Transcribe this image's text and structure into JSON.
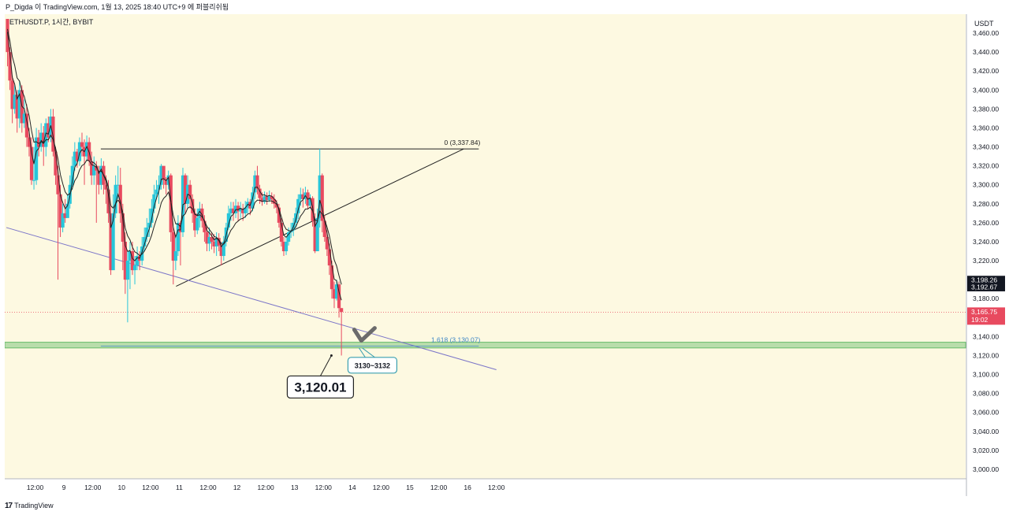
{
  "header": {
    "publish_line": "P_Digda 이 TradingView.com, 1월 13, 2025 18:40 UTC+9 에 퍼블리쉬됨"
  },
  "footer": {
    "brand": "TradingView",
    "logo_text": "17"
  },
  "colors": {
    "background": "#fdf9e1",
    "up": "#26c6da",
    "down": "#e84a5f",
    "ma": "#222222",
    "trend_blue": "#7b75c8",
    "zone_green": "#66bb6a",
    "fib_label": "#3d86c6",
    "annotation_border": "#3a9fb0"
  },
  "chart_data": {
    "type": "candlestick",
    "symbol_label": "ETHUSDT.P, 1시간, BYBIT",
    "currency": "USDT",
    "ylim": [
      2990,
      3480
    ],
    "y_ticks": [
      3000,
      3020,
      3040,
      3060,
      3080,
      3100,
      3120,
      3140,
      3160,
      3180,
      3200,
      3220,
      3240,
      3260,
      3280,
      3300,
      3320,
      3340,
      3360,
      3380,
      3400,
      3420,
      3440,
      3460
    ],
    "x_range": [
      0,
      1200
    ],
    "x_ticks": [
      {
        "t": 36,
        "label": "12:00"
      },
      {
        "t": 72,
        "label": "9"
      },
      {
        "t": 108,
        "label": "12:00"
      },
      {
        "t": 144,
        "label": "10"
      },
      {
        "t": 180,
        "label": "12:00"
      },
      {
        "t": 216,
        "label": "11"
      },
      {
        "t": 252,
        "label": "12:00"
      },
      {
        "t": 288,
        "label": "12"
      },
      {
        "t": 324,
        "label": "12:00"
      },
      {
        "t": 360,
        "label": "13"
      },
      {
        "t": 396,
        "label": "12:00"
      },
      {
        "t": 432,
        "label": "14"
      },
      {
        "t": 468,
        "label": "12:00"
      },
      {
        "t": 504,
        "label": "15"
      },
      {
        "t": 540,
        "label": "12:00"
      },
      {
        "t": 576,
        "label": "16"
      },
      {
        "t": 612,
        "label": "12:00"
      }
    ],
    "start_close": 3475,
    "candles": [
      {
        "c": 3440,
        "h": 3470,
        "l": 3425
      },
      {
        "c": 3410,
        "h": 3445,
        "l": 3400
      },
      {
        "c": 3380,
        "h": 3415,
        "l": 3365
      },
      {
        "c": 3395,
        "h": 3405,
        "l": 3375
      },
      {
        "c": 3370,
        "h": 3400,
        "l": 3355
      },
      {
        "c": 3400,
        "h": 3410,
        "l": 3360
      },
      {
        "c": 3365,
        "h": 3405,
        "l": 3355
      },
      {
        "c": 3375,
        "h": 3390,
        "l": 3360
      },
      {
        "c": 3350,
        "h": 3385,
        "l": 3340
      },
      {
        "c": 3340,
        "h": 3360,
        "l": 3330
      },
      {
        "c": 3305,
        "h": 3350,
        "l": 3300
      },
      {
        "c": 3305,
        "h": 3340,
        "l": 3295
      },
      {
        "c": 3350,
        "h": 3360,
        "l": 3300
      },
      {
        "c": 3340,
        "h": 3358,
        "l": 3330
      },
      {
        "c": 3355,
        "h": 3365,
        "l": 3335
      },
      {
        "c": 3340,
        "h": 3362,
        "l": 3320
      },
      {
        "c": 3365,
        "h": 3370,
        "l": 3330
      },
      {
        "c": 3350,
        "h": 3372,
        "l": 3345
      },
      {
        "c": 3372,
        "h": 3380,
        "l": 3345
      },
      {
        "c": 3335,
        "h": 3380,
        "l": 3330
      },
      {
        "c": 3310,
        "h": 3340,
        "l": 3300
      },
      {
        "c": 3290,
        "h": 3320,
        "l": 3200
      },
      {
        "c": 3255,
        "h": 3300,
        "l": 3245
      },
      {
        "c": 3270,
        "h": 3280,
        "l": 3250
      },
      {
        "c": 3265,
        "h": 3285,
        "l": 3260
      },
      {
        "c": 3280,
        "h": 3290,
        "l": 3270
      },
      {
        "c": 3300,
        "h": 3310,
        "l": 3275
      },
      {
        "c": 3320,
        "h": 3330,
        "l": 3295
      },
      {
        "c": 3335,
        "h": 3345,
        "l": 3315
      },
      {
        "c": 3325,
        "h": 3338,
        "l": 3318
      },
      {
        "c": 3345,
        "h": 3350,
        "l": 3320
      },
      {
        "c": 3340,
        "h": 3355,
        "l": 3330
      },
      {
        "c": 3330,
        "h": 3348,
        "l": 3300
      },
      {
        "c": 3345,
        "h": 3352,
        "l": 3325
      },
      {
        "c": 3325,
        "h": 3350,
        "l": 3320
      },
      {
        "c": 3310,
        "h": 3335,
        "l": 3300
      },
      {
        "c": 3320,
        "h": 3330,
        "l": 3300
      },
      {
        "c": 3315,
        "h": 3325,
        "l": 3260
      },
      {
        "c": 3300,
        "h": 3320,
        "l": 3290
      },
      {
        "c": 3320,
        "h": 3328,
        "l": 3295
      },
      {
        "c": 3300,
        "h": 3325,
        "l": 3290
      },
      {
        "c": 3295,
        "h": 3310,
        "l": 3280
      },
      {
        "c": 3270,
        "h": 3305,
        "l": 3260
      },
      {
        "c": 3210,
        "h": 3280,
        "l": 3205
      },
      {
        "c": 3270,
        "h": 3290,
        "l": 3260
      },
      {
        "c": 3300,
        "h": 3310,
        "l": 3265
      },
      {
        "c": 3300,
        "h": 3320,
        "l": 3285
      },
      {
        "c": 3270,
        "h": 3318,
        "l": 3260
      },
      {
        "c": 3240,
        "h": 3280,
        "l": 3210
      },
      {
        "c": 3200,
        "h": 3250,
        "l": 3185
      },
      {
        "c": 3220,
        "h": 3230,
        "l": 3155
      },
      {
        "c": 3230,
        "h": 3240,
        "l": 3190
      },
      {
        "c": 3210,
        "h": 3240,
        "l": 3205
      },
      {
        "c": 3215,
        "h": 3225,
        "l": 3195
      },
      {
        "c": 3225,
        "h": 3235,
        "l": 3210
      },
      {
        "c": 3220,
        "h": 3230,
        "l": 3210
      },
      {
        "c": 3235,
        "h": 3245,
        "l": 3215
      },
      {
        "c": 3245,
        "h": 3255,
        "l": 3230
      },
      {
        "c": 3255,
        "h": 3265,
        "l": 3240
      },
      {
        "c": 3260,
        "h": 3275,
        "l": 3245
      },
      {
        "c": 3275,
        "h": 3285,
        "l": 3255
      },
      {
        "c": 3290,
        "h": 3300,
        "l": 3270
      },
      {
        "c": 3295,
        "h": 3305,
        "l": 3285
      },
      {
        "c": 3300,
        "h": 3310,
        "l": 3280
      },
      {
        "c": 3320,
        "h": 3322,
        "l": 3295
      },
      {
        "c": 3305,
        "h": 3318,
        "l": 3296
      },
      {
        "c": 3300,
        "h": 3308,
        "l": 3290
      },
      {
        "c": 3310,
        "h": 3315,
        "l": 3295
      },
      {
        "c": 3250,
        "h": 3312,
        "l": 3240
      },
      {
        "c": 3220,
        "h": 3255,
        "l": 3195
      },
      {
        "c": 3230,
        "h": 3245,
        "l": 3210
      },
      {
        "c": 3260,
        "h": 3268,
        "l": 3225
      },
      {
        "c": 3250,
        "h": 3262,
        "l": 3215
      },
      {
        "c": 3310,
        "h": 3318,
        "l": 3245
      },
      {
        "c": 3280,
        "h": 3312,
        "l": 3270
      },
      {
        "c": 3300,
        "h": 3310,
        "l": 3275
      },
      {
        "c": 3285,
        "h": 3305,
        "l": 3275
      },
      {
        "c": 3270,
        "h": 3290,
        "l": 3260
      },
      {
        "c": 3252,
        "h": 3275,
        "l": 3245
      },
      {
        "c": 3265,
        "h": 3275,
        "l": 3248
      },
      {
        "c": 3275,
        "h": 3282,
        "l": 3255
      },
      {
        "c": 3262,
        "h": 3280,
        "l": 3255
      },
      {
        "c": 3250,
        "h": 3268,
        "l": 3240
      },
      {
        "c": 3238,
        "h": 3256,
        "l": 3230
      },
      {
        "c": 3245,
        "h": 3255,
        "l": 3230
      },
      {
        "c": 3240,
        "h": 3250,
        "l": 3232
      },
      {
        "c": 3235,
        "h": 3248,
        "l": 3228
      },
      {
        "c": 3244,
        "h": 3250,
        "l": 3225
      },
      {
        "c": 3236,
        "h": 3249,
        "l": 3230
      },
      {
        "c": 3225,
        "h": 3240,
        "l": 3215
      },
      {
        "c": 3240,
        "h": 3246,
        "l": 3220
      },
      {
        "c": 3255,
        "h": 3260,
        "l": 3235
      },
      {
        "c": 3270,
        "h": 3278,
        "l": 3252
      },
      {
        "c": 3275,
        "h": 3282,
        "l": 3262
      },
      {
        "c": 3270,
        "h": 3282,
        "l": 3262
      },
      {
        "c": 3278,
        "h": 3285,
        "l": 3265
      },
      {
        "c": 3272,
        "h": 3282,
        "l": 3262
      },
      {
        "c": 3275,
        "h": 3282,
        "l": 3265
      },
      {
        "c": 3270,
        "h": 3280,
        "l": 3262
      },
      {
        "c": 3276,
        "h": 3283,
        "l": 3265
      },
      {
        "c": 3282,
        "h": 3286,
        "l": 3270
      },
      {
        "c": 3275,
        "h": 3285,
        "l": 3268
      },
      {
        "c": 3292,
        "h": 3298,
        "l": 3272
      },
      {
        "c": 3310,
        "h": 3315,
        "l": 3285
      },
      {
        "c": 3296,
        "h": 3320,
        "l": 3290
      },
      {
        "c": 3286,
        "h": 3300,
        "l": 3280
      },
      {
        "c": 3282,
        "h": 3292,
        "l": 3278
      },
      {
        "c": 3288,
        "h": 3293,
        "l": 3280
      },
      {
        "c": 3284,
        "h": 3292,
        "l": 3279
      },
      {
        "c": 3288,
        "h": 3294,
        "l": 3282
      },
      {
        "c": 3285,
        "h": 3292,
        "l": 3280
      },
      {
        "c": 3280,
        "h": 3290,
        "l": 3275
      },
      {
        "c": 3276,
        "h": 3284,
        "l": 3270
      },
      {
        "c": 3260,
        "h": 3280,
        "l": 3255
      },
      {
        "c": 3240,
        "h": 3265,
        "l": 3235
      },
      {
        "c": 3230,
        "h": 3245,
        "l": 3225
      },
      {
        "c": 3240,
        "h": 3245,
        "l": 3226
      },
      {
        "c": 3250,
        "h": 3255,
        "l": 3236
      },
      {
        "c": 3252,
        "h": 3260,
        "l": 3244
      },
      {
        "c": 3260,
        "h": 3265,
        "l": 3246
      },
      {
        "c": 3270,
        "h": 3276,
        "l": 3255
      },
      {
        "c": 3285,
        "h": 3290,
        "l": 3264
      },
      {
        "c": 3290,
        "h": 3297,
        "l": 3278
      },
      {
        "c": 3285,
        "h": 3296,
        "l": 3276
      },
      {
        "c": 3292,
        "h": 3298,
        "l": 3280
      },
      {
        "c": 3278,
        "h": 3295,
        "l": 3274
      },
      {
        "c": 3286,
        "h": 3290,
        "l": 3275
      },
      {
        "c": 3262,
        "h": 3288,
        "l": 3256
      },
      {
        "c": 3230,
        "h": 3270,
        "l": 3228
      },
      {
        "c": 3265,
        "h": 3275,
        "l": 3240
      },
      {
        "c": 3310,
        "h": 3338,
        "l": 3255
      },
      {
        "c": 3262,
        "h": 3312,
        "l": 3250
      },
      {
        "c": 3245,
        "h": 3268,
        "l": 3240
      },
      {
        "c": 3232,
        "h": 3252,
        "l": 3225
      },
      {
        "c": 3215,
        "h": 3238,
        "l": 3205
      },
      {
        "c": 3190,
        "h": 3220,
        "l": 3180
      },
      {
        "c": 3180,
        "h": 3198,
        "l": 3170
      },
      {
        "c": 3195,
        "h": 3200,
        "l": 3178
      },
      {
        "c": 3170,
        "h": 3198,
        "l": 3160
      },
      {
        "c": 3166,
        "h": 3170,
        "l": 3120
      }
    ],
    "ma_curves": [
      {
        "name": "EMA fast",
        "offset": 2
      },
      {
        "name": "EMA slow",
        "offset": -3
      }
    ],
    "price_labels": [
      {
        "value": 3198.26,
        "label": "3,198.26",
        "bg": "#131722",
        "fg": "#ffffff"
      },
      {
        "value": 3192.67,
        "label": "3,192.67",
        "bg": "#131722",
        "fg": "#ffffff"
      },
      {
        "value": 3165.75,
        "label": "3,165.75",
        "sub": "19:02",
        "bg": "#e84a5f",
        "fg": "#ffffff"
      }
    ],
    "current_price": 3165.75,
    "fib": [
      {
        "level_label": "0 (3,337.84)",
        "value": 3337.84,
        "t0": 118,
        "t1": 590
      },
      {
        "level_label": "1.618 (3,130.07)",
        "value": 3130.07,
        "t0": 118,
        "t1": 590
      }
    ],
    "support_zone": {
      "low": 3128,
      "high": 3134,
      "label": "3130~3132"
    },
    "low_marker": {
      "value": 3120.01,
      "label": "3,120.01",
      "t": 405
    },
    "trendlines": [
      {
        "name": "rising",
        "t0": 212,
        "v0": 3193,
        "t1": 571,
        "v1": 3337.84
      },
      {
        "name": "descending",
        "t0": 0,
        "v0": 3255,
        "t1": 612,
        "v1": 3105
      }
    ]
  }
}
